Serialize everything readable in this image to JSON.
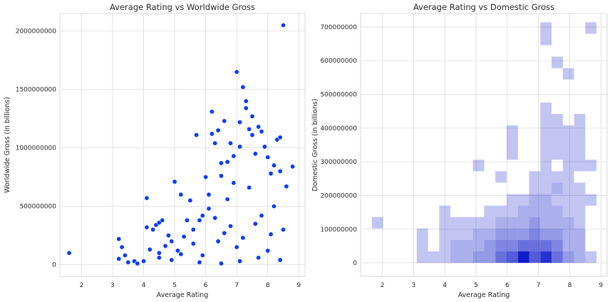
{
  "chart_data": [
    {
      "type": "scatter",
      "title": "Average Rating vs Worldwide Gross",
      "xlabel": "Average Rating",
      "ylabel": "Worldwide Gross (in billions)",
      "xlim": [
        1.3,
        9.2
      ],
      "ylim": [
        -100000000,
        2150000000
      ],
      "xticks": [
        2,
        3,
        4,
        5,
        6,
        7,
        8,
        9
      ],
      "yticks": [
        0,
        500000000,
        1000000000,
        1500000000,
        2000000000
      ],
      "ytick_labels": [
        "0",
        "500000000",
        "1000000000",
        "1500000000",
        "2000000000"
      ],
      "grid": true,
      "color": "#0b3cf5",
      "points": [
        [
          1.6,
          100000000
        ],
        [
          3.2,
          50000000
        ],
        [
          3.2,
          220000000
        ],
        [
          3.3,
          150000000
        ],
        [
          3.4,
          80000000
        ],
        [
          3.5,
          20000000
        ],
        [
          3.7,
          30000000
        ],
        [
          3.8,
          10000000
        ],
        [
          4.0,
          30000000
        ],
        [
          4.1,
          570000000
        ],
        [
          4.1,
          320000000
        ],
        [
          4.2,
          130000000
        ],
        [
          4.3,
          300000000
        ],
        [
          4.4,
          340000000
        ],
        [
          4.5,
          360000000
        ],
        [
          4.6,
          380000000
        ],
        [
          4.5,
          100000000
        ],
        [
          4.7,
          160000000
        ],
        [
          4.8,
          250000000
        ],
        [
          4.9,
          200000000
        ],
        [
          5.0,
          710000000
        ],
        [
          5.1,
          120000000
        ],
        [
          5.2,
          600000000
        ],
        [
          5.3,
          240000000
        ],
        [
          5.4,
          380000000
        ],
        [
          5.5,
          550000000
        ],
        [
          5.6,
          300000000
        ],
        [
          5.7,
          1110000000
        ],
        [
          5.8,
          380000000
        ],
        [
          5.9,
          420000000
        ],
        [
          6.0,
          750000000
        ],
        [
          6.1,
          600000000
        ],
        [
          6.2,
          1120000000
        ],
        [
          6.2,
          1310000000
        ],
        [
          6.3,
          1040000000
        ],
        [
          6.4,
          1150000000
        ],
        [
          6.5,
          870000000
        ],
        [
          6.5,
          760000000
        ],
        [
          6.6,
          1230000000
        ],
        [
          6.7,
          880000000
        ],
        [
          6.8,
          1040000000
        ],
        [
          6.9,
          930000000
        ],
        [
          7.0,
          1650000000
        ],
        [
          7.1,
          1010000000
        ],
        [
          7.1,
          1220000000
        ],
        [
          7.2,
          1520000000
        ],
        [
          7.3,
          1400000000
        ],
        [
          7.3,
          1340000000
        ],
        [
          7.4,
          1160000000
        ],
        [
          7.5,
          1270000000
        ],
        [
          7.5,
          1110000000
        ],
        [
          7.6,
          950000000
        ],
        [
          7.7,
          1180000000
        ],
        [
          7.8,
          1140000000
        ],
        [
          7.9,
          1010000000
        ],
        [
          8.0,
          920000000
        ],
        [
          8.1,
          780000000
        ],
        [
          8.2,
          850000000
        ],
        [
          8.3,
          1070000000
        ],
        [
          8.4,
          1090000000
        ],
        [
          8.5,
          2050000000
        ],
        [
          8.6,
          670000000
        ],
        [
          8.8,
          840000000
        ],
        [
          8.4,
          800000000
        ],
        [
          8.2,
          500000000
        ],
        [
          8.5,
          300000000
        ],
        [
          8.4,
          40000000
        ],
        [
          6.4,
          200000000
        ],
        [
          6.8,
          330000000
        ],
        [
          7.0,
          150000000
        ],
        [
          5.9,
          80000000
        ],
        [
          6.3,
          400000000
        ],
        [
          6.6,
          270000000
        ],
        [
          7.2,
          230000000
        ],
        [
          7.6,
          350000000
        ],
        [
          7.8,
          420000000
        ],
        [
          6.1,
          480000000
        ],
        [
          6.7,
          560000000
        ],
        [
          7.4,
          660000000
        ],
        [
          6.9,
          700000000
        ],
        [
          5.6,
          180000000
        ],
        [
          5.2,
          90000000
        ],
        [
          4.9,
          40000000
        ],
        [
          4.5,
          60000000
        ],
        [
          5.8,
          20000000
        ],
        [
          6.5,
          10000000
        ],
        [
          7.1,
          30000000
        ],
        [
          7.7,
          60000000
        ],
        [
          8.0,
          120000000
        ],
        [
          8.1,
          260000000
        ]
      ]
    },
    {
      "type": "heatmap",
      "title": "Average Rating vs Domestic Gross",
      "xlabel": "Average Rating",
      "ylabel": "Domestic Gross (in billions)",
      "xlim": [
        1.3,
        9.2
      ],
      "ylim": [
        -40000000,
        740000000
      ],
      "xticks": [
        2,
        3,
        4,
        5,
        6,
        7,
        8,
        9
      ],
      "yticks": [
        0,
        100000000,
        200000000,
        300000000,
        400000000,
        500000000,
        600000000,
        700000000
      ],
      "ytick_labels": [
        "0",
        "100000000",
        "200000000",
        "300000000",
        "400000000",
        "500000000",
        "600000000",
        "700000000"
      ],
      "grid": true,
      "color": "#0a16c8",
      "x_bin_width": 0.36,
      "y_bin_width": 34000000,
      "cells": [
        [
          1.66,
          102000000,
          1
        ],
        [
          3.1,
          0,
          1
        ],
        [
          3.1,
          34000000,
          1
        ],
        [
          3.1,
          68000000,
          1
        ],
        [
          3.46,
          0,
          1
        ],
        [
          3.82,
          0,
          1
        ],
        [
          4.18,
          0,
          2
        ],
        [
          4.54,
          0,
          2
        ],
        [
          4.9,
          0,
          3
        ],
        [
          5.26,
          0,
          3
        ],
        [
          5.62,
          0,
          5
        ],
        [
          5.98,
          0,
          6
        ],
        [
          6.34,
          0,
          9
        ],
        [
          6.7,
          0,
          6
        ],
        [
          7.06,
          0,
          8
        ],
        [
          7.42,
          0,
          5
        ],
        [
          7.78,
          0,
          3
        ],
        [
          8.14,
          0,
          2
        ],
        [
          8.5,
          0,
          1
        ],
        [
          3.82,
          34000000,
          1
        ],
        [
          4.18,
          34000000,
          2
        ],
        [
          4.54,
          34000000,
          2
        ],
        [
          4.9,
          34000000,
          2
        ],
        [
          5.26,
          34000000,
          3
        ],
        [
          5.62,
          34000000,
          4
        ],
        [
          5.98,
          34000000,
          4
        ],
        [
          6.34,
          34000000,
          5
        ],
        [
          6.7,
          34000000,
          5
        ],
        [
          7.06,
          34000000,
          5
        ],
        [
          7.42,
          34000000,
          4
        ],
        [
          7.78,
          34000000,
          2
        ],
        [
          8.14,
          34000000,
          2
        ],
        [
          3.82,
          68000000,
          1
        ],
        [
          4.18,
          68000000,
          1
        ],
        [
          4.54,
          68000000,
          1
        ],
        [
          4.9,
          68000000,
          2
        ],
        [
          5.26,
          68000000,
          2
        ],
        [
          5.62,
          68000000,
          3
        ],
        [
          5.98,
          68000000,
          3
        ],
        [
          6.34,
          68000000,
          3
        ],
        [
          6.7,
          68000000,
          4
        ],
        [
          7.06,
          68000000,
          3
        ],
        [
          7.42,
          68000000,
          3
        ],
        [
          7.78,
          68000000,
          2
        ],
        [
          8.14,
          68000000,
          2
        ],
        [
          3.82,
          102000000,
          1
        ],
        [
          4.18,
          102000000,
          1
        ],
        [
          4.54,
          102000000,
          1
        ],
        [
          4.9,
          102000000,
          1
        ],
        [
          5.26,
          102000000,
          1
        ],
        [
          5.62,
          102000000,
          2
        ],
        [
          5.98,
          102000000,
          2
        ],
        [
          6.34,
          102000000,
          2
        ],
        [
          6.7,
          102000000,
          3
        ],
        [
          7.06,
          102000000,
          2
        ],
        [
          7.42,
          102000000,
          2
        ],
        [
          7.78,
          102000000,
          2
        ],
        [
          8.14,
          102000000,
          1
        ],
        [
          3.82,
          136000000,
          1
        ],
        [
          5.26,
          136000000,
          1
        ],
        [
          5.62,
          136000000,
          1
        ],
        [
          5.98,
          136000000,
          1
        ],
        [
          6.34,
          136000000,
          2
        ],
        [
          6.7,
          136000000,
          2
        ],
        [
          7.06,
          136000000,
          2
        ],
        [
          7.42,
          136000000,
          2
        ],
        [
          7.78,
          136000000,
          1
        ],
        [
          8.14,
          136000000,
          1
        ],
        [
          5.98,
          170000000,
          1
        ],
        [
          6.34,
          170000000,
          1
        ],
        [
          6.7,
          170000000,
          2
        ],
        [
          7.06,
          170000000,
          2
        ],
        [
          7.42,
          170000000,
          1
        ],
        [
          7.78,
          170000000,
          1
        ],
        [
          8.14,
          170000000,
          1
        ],
        [
          8.5,
          170000000,
          1
        ],
        [
          6.7,
          204000000,
          1
        ],
        [
          7.06,
          204000000,
          1
        ],
        [
          7.42,
          204000000,
          2
        ],
        [
          7.78,
          204000000,
          1
        ],
        [
          8.14,
          204000000,
          1
        ],
        [
          4.9,
          272000000,
          1
        ],
        [
          6.7,
          238000000,
          1
        ],
        [
          7.06,
          238000000,
          1
        ],
        [
          7.42,
          238000000,
          1
        ],
        [
          7.78,
          238000000,
          1
        ],
        [
          5.62,
          238000000,
          1
        ],
        [
          7.06,
          272000000,
          1
        ],
        [
          7.78,
          272000000,
          1
        ],
        [
          8.14,
          272000000,
          1
        ],
        [
          8.5,
          272000000,
          1
        ],
        [
          5.98,
          306000000,
          1
        ],
        [
          7.06,
          306000000,
          1
        ],
        [
          7.42,
          306000000,
          1
        ],
        [
          7.78,
          306000000,
          1
        ],
        [
          8.14,
          306000000,
          1
        ],
        [
          5.98,
          340000000,
          1
        ],
        [
          7.06,
          340000000,
          1
        ],
        [
          7.42,
          340000000,
          1
        ],
        [
          7.78,
          340000000,
          1
        ],
        [
          8.14,
          340000000,
          1
        ],
        [
          5.98,
          374000000,
          1
        ],
        [
          7.06,
          374000000,
          1
        ],
        [
          7.42,
          374000000,
          1
        ],
        [
          7.78,
          374000000,
          1
        ],
        [
          8.14,
          374000000,
          1
        ],
        [
          7.06,
          408000000,
          1
        ],
        [
          7.42,
          408000000,
          1
        ],
        [
          8.14,
          408000000,
          1
        ],
        [
          7.06,
          442000000,
          1
        ],
        [
          7.78,
          544000000,
          1
        ],
        [
          7.42,
          578000000,
          1
        ],
        [
          7.06,
          646000000,
          1
        ],
        [
          7.06,
          680000000,
          1
        ],
        [
          8.5,
          680000000,
          1
        ]
      ]
    }
  ]
}
